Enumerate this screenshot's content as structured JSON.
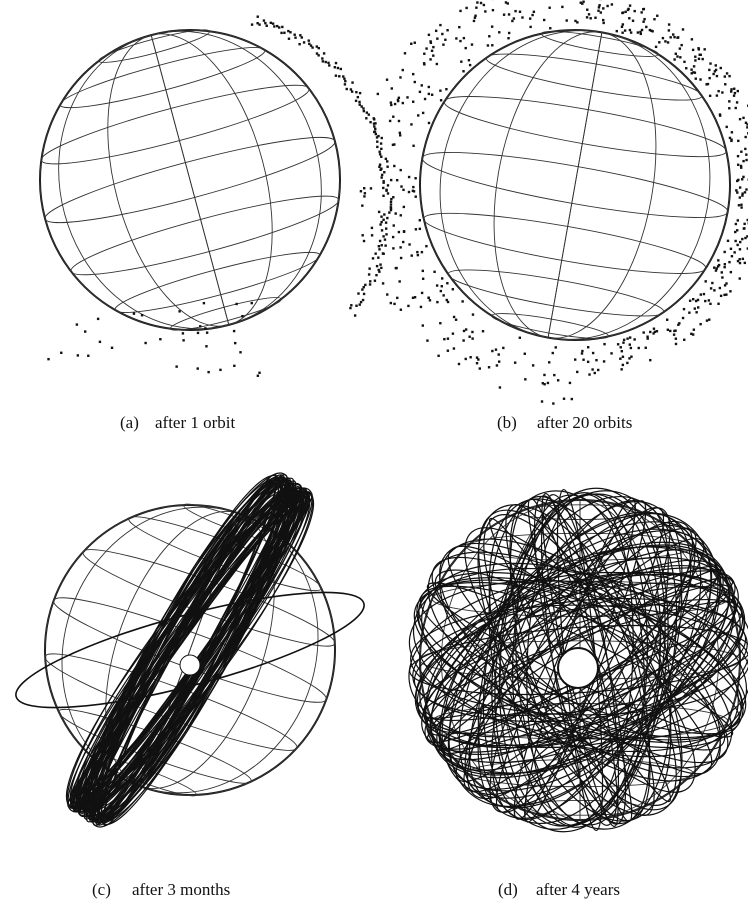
{
  "panels": [
    {
      "label": "(a)",
      "text": "after 1 orbit"
    },
    {
      "label": "(b)",
      "text": "after 20 orbits"
    },
    {
      "label": "(c)",
      "text": "after 3 months"
    },
    {
      "label": "(d)",
      "text": "after 4 years"
    }
  ]
}
